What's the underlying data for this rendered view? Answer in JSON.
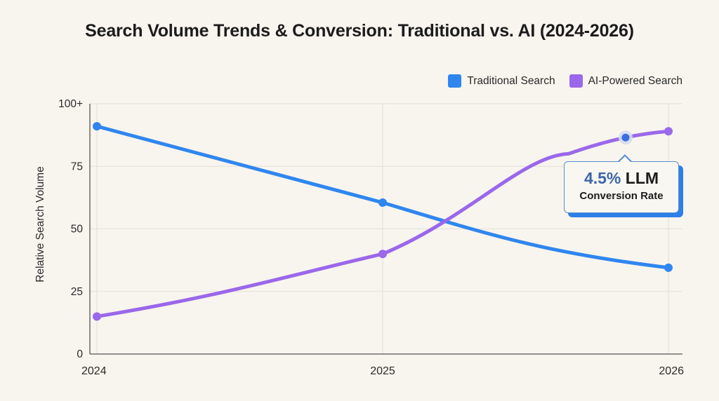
{
  "title": "Search Volume Trends & Conversion: Traditional vs. AI (2024-2026)",
  "legend": [
    {
      "label": "Traditional Search",
      "color": "#2f86ef"
    },
    {
      "label": "AI-Powered Search",
      "color": "#9a68ea"
    }
  ],
  "tooltip": {
    "percent": "4.5%",
    "suffix": " LLM",
    "subtitle": "Conversion Rate"
  },
  "chart_data": {
    "type": "line",
    "title": "Search Volume Trends & Conversion: Traditional vs. AI (2024-2026)",
    "xlabel": "",
    "ylabel": "Relative Search Volume",
    "x": [
      2024,
      2025,
      2026
    ],
    "x_tick_labels": [
      "2024",
      "2025",
      "2026"
    ],
    "y_ticks": [
      0,
      25,
      50,
      75,
      100
    ],
    "y_tick_labels": [
      "0",
      "25",
      "50",
      "75",
      "100+"
    ],
    "ylim": [
      0,
      100
    ],
    "grid": true,
    "legend_position": "top-right",
    "series": [
      {
        "name": "Traditional Search",
        "color": "#2f86ef",
        "values": [
          91,
          60.5,
          34.5
        ]
      },
      {
        "name": "AI-Powered Search",
        "color": "#9a68ea",
        "values": [
          15,
          40,
          89
        ]
      }
    ],
    "annotations": [
      {
        "text": "4.5% LLM Conversion Rate",
        "x": 2025.85,
        "y": 86.5,
        "series": "AI-Powered Search"
      }
    ]
  }
}
